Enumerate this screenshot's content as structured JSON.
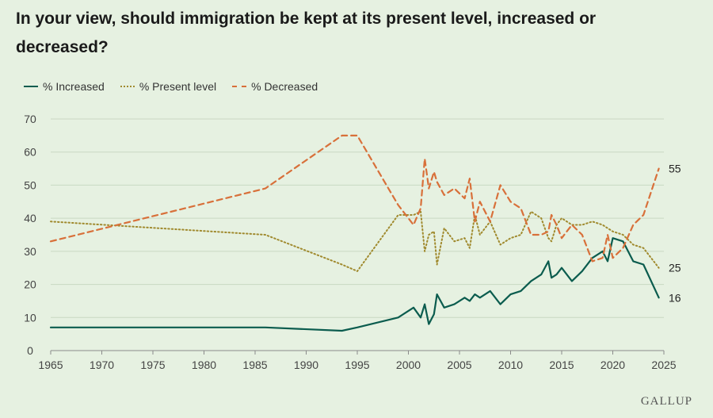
{
  "title": "In your view, should immigration be kept at its present level, increased or decreased?",
  "brand": "GALLUP",
  "colors": {
    "increased": "#0b5c4e",
    "present": "#a08a2e",
    "decreased": "#d8703a",
    "grid": "#c9d8c2",
    "background": "#e6f1e1"
  },
  "legend": [
    {
      "label": "% Increased"
    },
    {
      "label": "% Present level"
    },
    {
      "label": "% Decreased"
    }
  ],
  "chart_data": {
    "type": "line",
    "title": "In your view, should immigration be kept at its present level, increased or decreased?",
    "xlabel": "",
    "ylabel": "",
    "xlim": [
      1965,
      2025
    ],
    "ylim": [
      0,
      70
    ],
    "xticks": [
      1965,
      1970,
      1975,
      1980,
      1985,
      1990,
      1995,
      2000,
      2005,
      2010,
      2015,
      2020,
      2025
    ],
    "yticks": [
      0,
      10,
      20,
      30,
      40,
      50,
      60,
      70
    ],
    "grid": true,
    "legend_position": "top-left",
    "series": [
      {
        "name": "% Increased",
        "style": "solid",
        "end_label": "16",
        "x": [
          1965,
          1986,
          1993.5,
          1995,
          1999,
          2000.5,
          2001.2,
          2001.6,
          2002,
          2002.5,
          2002.8,
          2003.5,
          2004.5,
          2005.5,
          2006,
          2006.5,
          2007,
          2008,
          2009,
          2010,
          2011,
          2012,
          2013,
          2013.7,
          2014,
          2014.5,
          2015,
          2016,
          2017,
          2018,
          2019,
          2019.5,
          2020,
          2021,
          2022,
          2023,
          2024.5
        ],
        "y": [
          7,
          7,
          6,
          7,
          10,
          13,
          10,
          14,
          8,
          11,
          17,
          13,
          14,
          16,
          15,
          17,
          16,
          18,
          14,
          17,
          18,
          21,
          23,
          27,
          22,
          23,
          25,
          21,
          24,
          28,
          30,
          27,
          34,
          33,
          27,
          26,
          16
        ]
      },
      {
        "name": "% Present level",
        "style": "dotted",
        "end_label": "25",
        "x": [
          1965,
          1986,
          1993.5,
          1995,
          1999,
          2000.5,
          2001.2,
          2001.6,
          2002,
          2002.5,
          2002.8,
          2003.5,
          2004.5,
          2005.5,
          2006,
          2006.5,
          2007,
          2008,
          2009,
          2010,
          2011,
          2012,
          2013,
          2013.7,
          2014,
          2014.5,
          2015,
          2016,
          2017,
          2018,
          2019,
          2019.5,
          2020,
          2021,
          2022,
          2023,
          2024.5
        ],
        "y": [
          39,
          35,
          26,
          24,
          41,
          41,
          42,
          30,
          35,
          36,
          26,
          37,
          33,
          34,
          31,
          41,
          35,
          39,
          32,
          34,
          35,
          42,
          40,
          34,
          33,
          38,
          40,
          38,
          38,
          39,
          38,
          37,
          36,
          35,
          32,
          31,
          25
        ]
      },
      {
        "name": "% Decreased",
        "style": "dashed",
        "end_label": "55",
        "x": [
          1965,
          1986,
          1993.5,
          1995,
          1999,
          2000.5,
          2001.2,
          2001.6,
          2002,
          2002.5,
          2002.8,
          2003.5,
          2004.5,
          2005.5,
          2006,
          2006.5,
          2007,
          2008,
          2009,
          2010,
          2011,
          2012,
          2013,
          2013.7,
          2014,
          2014.5,
          2015,
          2016,
          2017,
          2018,
          2019,
          2019.5,
          2020,
          2021,
          2022,
          2023,
          2024.5
        ],
        "y": [
          33,
          49,
          65,
          65,
          44,
          38,
          43,
          58,
          49,
          54,
          51,
          47,
          49,
          46,
          52,
          39,
          45,
          39,
          50,
          45,
          43,
          35,
          35,
          36,
          41,
          38,
          34,
          38,
          35,
          27,
          28,
          35,
          28,
          31,
          38,
          41,
          55
        ]
      }
    ]
  }
}
